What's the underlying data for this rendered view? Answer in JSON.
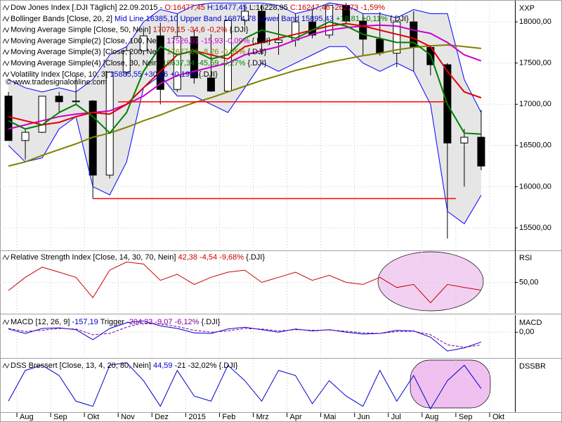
{
  "chart_data": [
    {
      "type": "candlestick",
      "axis_label": "XXP",
      "watermark": "© www.tradesignalonline.com",
      "legend": [
        [
          {
            "text": "Dow Jones Index [.DJI Täglich] 22.09.2015 - ",
            "color": "#000000"
          },
          {
            "text": "O:16477,45 ",
            "color": "#cc0000"
          },
          {
            "text": "H:16477,45 ",
            "color": "#0000cc"
          },
          {
            "text": "L:16228,95 ",
            "color": "#000000"
          },
          {
            "text": "C:16247,46 -262,73 -1,59%",
            "color": "#cc0000"
          }
        ],
        [
          {
            "text": "Bollinger Bands [Close, 20, 2] ",
            "color": "#000000"
          },
          {
            "text": "Mid Line 16385,10 Upper Band 16874,78 Lower Band 15895,43",
            "color": "#0000cc"
          },
          {
            "text": " +18,81 +0,11%",
            "color": "#008000"
          },
          {
            "text": " {.DJI}",
            "color": "#000000"
          }
        ],
        [
          {
            "text": "Moving Average Simple [Close, 50, Nein] ",
            "color": "#000000"
          },
          {
            "text": "17079,15 -34,6 -0,2%",
            "color": "#cc0000"
          },
          {
            "text": " {.DJI}",
            "color": "#000000"
          }
        ],
        [
          {
            "text": "Moving Average Simple(2) [Close, 100, Nein] ",
            "color": "#000000"
          },
          {
            "text": "17526,01 -15,93 -0,09%",
            "color": "#cc00cc"
          },
          {
            "text": " {.DJI}",
            "color": "#000000"
          }
        ],
        [
          {
            "text": "Moving Average Simple(3) [Close, 200, Nein] ",
            "color": "#000000"
          },
          {
            "text": "17677,06 -8,26 -0,05%",
            "color": "#808000"
          },
          {
            "text": " {.DJI}",
            "color": "#000000"
          }
        ],
        [
          {
            "text": "Moving Average Simple(4) [Close, 30, Nein] ",
            "color": "#000000"
          },
          {
            "text": "16637,34 -45,59 -0,27%",
            "color": "#008000"
          },
          {
            "text": " {.DJI}",
            "color": "#000000"
          }
        ],
        [
          {
            "text": "Volatility Index [Close, 10, 3] ",
            "color": "#000000"
          },
          {
            "text": "15885,55 +30,26 +0,19%",
            "color": "#0000cc"
          },
          {
            "text": " {.DJI}",
            "color": "#000000"
          }
        ]
      ],
      "x": [
        0.5,
        1.5,
        2.5,
        3.5,
        4.5,
        5.5,
        6.5,
        7.5,
        8.5,
        9.5,
        10.5,
        11.5,
        12.5,
        13.5,
        14.5,
        15.5,
        16.5,
        17.5,
        18.5,
        19.5,
        20.5,
        21.5,
        22.5,
        23.5,
        24.5,
        25.5,
        26.5,
        27.5,
        28.5
      ],
      "open": [
        17100,
        16560,
        16660,
        17098,
        17030,
        17040,
        16140,
        17390,
        17650,
        17830,
        17180,
        17820,
        17320,
        17160,
        18020,
        18130,
        17750,
        17780,
        18000,
        17840,
        18200,
        18010,
        17790,
        17620,
        18000,
        17690,
        17480,
        16530,
        16600
      ],
      "high": [
        17150,
        16700,
        17100,
        17150,
        17350,
        17050,
        17400,
        17700,
        17900,
        17990,
        18100,
        17900,
        17850,
        18020,
        18200,
        18200,
        18100,
        18100,
        18150,
        18200,
        18230,
        18100,
        18120,
        18000,
        18130,
        17700,
        17500,
        16700,
        16930
      ],
      "low": [
        16560,
        16330,
        16650,
        16900,
        17000,
        15855,
        16100,
        17350,
        17600,
        17000,
        17150,
        17250,
        17150,
        17150,
        17950,
        17600,
        17600,
        17700,
        17800,
        17800,
        17980,
        17600,
        17590,
        17450,
        17400,
        17350,
        15370,
        16000,
        16200
      ],
      "close": [
        16560,
        16660,
        17098,
        17030,
        17040,
        16140,
        17390,
        17650,
        17830,
        17180,
        17820,
        17320,
        17160,
        18020,
        18130,
        17750,
        17780,
        18000,
        17840,
        18200,
        18010,
        17790,
        17620,
        18000,
        17690,
        17480,
        16530,
        16600,
        16250
      ],
      "up_color": "#ffffff",
      "down_color": "#000000",
      "bands": {
        "color": "#0000ff",
        "fill": "#e6e6e6",
        "upper": [
          17300,
          17200,
          17150,
          17200,
          17150,
          17300,
          17600,
          17700,
          18000,
          18150,
          18100,
          18200,
          18230,
          18230,
          18230,
          18230,
          18200,
          18100,
          18150,
          18230,
          18200,
          18100,
          18100,
          18050,
          18150,
          18100,
          18100,
          17300,
          16900
        ],
        "lower": [
          16500,
          16300,
          16350,
          16700,
          16850,
          16000,
          15900,
          16300,
          17200,
          17350,
          17100,
          17100,
          17000,
          16900,
          17200,
          17500,
          17400,
          17500,
          17600,
          17700,
          17700,
          17500,
          17400,
          17500,
          17400,
          17000,
          15700,
          15550,
          15895.43
        ]
      },
      "series": [
        {
          "color": "#808000",
          "values": [
            16250,
            16300,
            16380,
            16450,
            16520,
            16600,
            16650,
            16720,
            16800,
            16870,
            16950,
            17020,
            17080,
            17150,
            17220,
            17290,
            17350,
            17410,
            17460,
            17510,
            17550,
            17590,
            17620,
            17660,
            17690,
            17710,
            17720,
            17700,
            17677.06
          ]
        },
        {
          "color": "#cc00cc",
          "values": [
            16700,
            16750,
            16800,
            16850,
            16880,
            16900,
            16920,
            17000,
            17100,
            17250,
            17350,
            17400,
            17450,
            17500,
            17600,
            17650,
            17700,
            17780,
            17850,
            17900,
            17930,
            17950,
            17960,
            17950,
            17900,
            17860,
            17750,
            17600,
            17526.01
          ]
        },
        {
          "color": "#e00000",
          "values": [
            16850,
            16800,
            16750,
            16780,
            16850,
            16900,
            16880,
            17000,
            17200,
            17400,
            17600,
            17650,
            17600,
            17550,
            17700,
            17750,
            17800,
            17850,
            17900,
            17950,
            17980,
            17950,
            17900,
            17850,
            17800,
            17700,
            17400,
            17150,
            17079.15
          ]
        },
        {
          "color": "#008000",
          "values": [
            16800,
            16700,
            16750,
            16900,
            17000,
            16850,
            16650,
            16900,
            17400,
            17700,
            17600,
            17650,
            17550,
            17600,
            17800,
            17900,
            17850,
            17800,
            17900,
            18000,
            17950,
            17850,
            17800,
            17750,
            17750,
            17600,
            17000,
            16650,
            16637.34
          ]
        }
      ],
      "hlines": [
        {
          "value": 17030,
          "x": [
            7,
            26.4
          ],
          "color": "#ff0000"
        },
        {
          "value": 15855,
          "x": [
            5.5,
            27
          ],
          "color": "#ff0000"
        }
      ],
      "xlim": [
        0,
        30.5
      ],
      "xticks": [
        1,
        3,
        5,
        7,
        9,
        11,
        13,
        15,
        17,
        19,
        21,
        23,
        25,
        27,
        29
      ],
      "ylim": [
        15235,
        18240
      ],
      "yticks": [
        {
          "value": 15500,
          "label": "15500,00"
        },
        {
          "value": 16000,
          "label": "16000,00"
        },
        {
          "value": 16500,
          "label": "16500,00"
        },
        {
          "value": 17000,
          "label": "17000,00"
        },
        {
          "value": 17500,
          "label": "17500,00"
        },
        {
          "value": 18000,
          "label": "18000,00"
        }
      ]
    },
    {
      "type": "line",
      "axis_label": "RSI",
      "legend": [
        [
          {
            "text": "Relative Strength Index [Close, 14, 30, 70, Nein] ",
            "color": "#000000"
          },
          {
            "text": "42,38 -4,54 -9,68%",
            "color": "#cc0000"
          },
          {
            "text": " {.DJI}",
            "color": "#000000"
          }
        ]
      ],
      "x": [
        0.5,
        1.5,
        2.5,
        3.5,
        4.5,
        5.5,
        6.5,
        7.5,
        8.5,
        9.5,
        10.5,
        11.5,
        12.5,
        13.5,
        14.5,
        15.5,
        16.5,
        17.5,
        18.5,
        19.5,
        20.5,
        21.5,
        22.5,
        23.5,
        24.5,
        25.5,
        26.5,
        27.5,
        28.5
      ],
      "series": [
        {
          "color": "#cc0000",
          "values": [
            42,
            55,
            65,
            60,
            55,
            35,
            62,
            70,
            68,
            52,
            58,
            48,
            55,
            60,
            62,
            50,
            55,
            60,
            52,
            57,
            50,
            48,
            55,
            45,
            48,
            30,
            48,
            45,
            42.38
          ]
        }
      ],
      "xlim": [
        0,
        30.5
      ],
      "xticks": [
        1,
        3,
        5,
        7,
        9,
        11,
        13,
        15,
        17,
        19,
        21,
        23,
        25,
        27,
        29
      ],
      "ylim": [
        20,
        80
      ],
      "yticks": [
        {
          "value": 50,
          "label": "50,00"
        }
      ]
    },
    {
      "type": "line",
      "axis_label": "MACD",
      "legend": [
        [
          {
            "text": "MACD [12, 26, 9] ",
            "color": "#000000"
          },
          {
            "text": "-157,19",
            "color": "#0000cc"
          },
          {
            "text": " Trigger ",
            "color": "#000000"
          },
          {
            "text": "-204,33 -9,07 -6,12%",
            "color": "#8000a0"
          },
          {
            "text": " {.DJI}",
            "color": "#000000"
          }
        ]
      ],
      "x": [
        0.5,
        1.5,
        2.5,
        3.5,
        4.5,
        5.5,
        6.5,
        7.5,
        8.5,
        9.5,
        10.5,
        11.5,
        12.5,
        13.5,
        14.5,
        15.5,
        16.5,
        17.5,
        18.5,
        19.5,
        20.5,
        21.5,
        22.5,
        23.5,
        24.5,
        25.5,
        26.5,
        27.5,
        28.5
      ],
      "series": [
        {
          "color": "#0000cc",
          "values": [
            50,
            -20,
            60,
            70,
            40,
            -120,
            60,
            150,
            180,
            100,
            60,
            -10,
            -20,
            50,
            80,
            40,
            0,
            50,
            20,
            40,
            0,
            -30,
            -20,
            30,
            20,
            -80,
            -300,
            -250,
            -157.19
          ]
        },
        {
          "color": "#8000a0",
          "dashed": true,
          "values": [
            60,
            10,
            30,
            60,
            50,
            -40,
            -20,
            80,
            150,
            130,
            90,
            30,
            0,
            20,
            60,
            50,
            20,
            40,
            30,
            35,
            15,
            -10,
            -20,
            10,
            15,
            -40,
            -200,
            -240,
            -204.33
          ]
        }
      ],
      "xlim": [
        0,
        30.5
      ],
      "xticks": [
        1,
        3,
        5,
        7,
        9,
        11,
        13,
        15,
        17,
        19,
        21,
        23,
        25,
        27,
        29
      ],
      "ylim": [
        -400,
        250
      ],
      "yticks": [
        {
          "value": 0,
          "label": "0,00"
        }
      ]
    },
    {
      "type": "line",
      "axis_label": "DSSBR",
      "legend": [
        [
          {
            "text": "DSS Bressert [Close, 13, 4, 20, 80, Nein] ",
            "color": "#000000"
          },
          {
            "text": "44,59",
            "color": "#0000cc"
          },
          {
            "text": " -21 -32,02% {.DJI}",
            "color": "#000000"
          }
        ]
      ],
      "x": [
        0.5,
        1.5,
        2.5,
        3.5,
        4.5,
        5.5,
        6.5,
        7.5,
        8.5,
        9.5,
        10.5,
        11.5,
        12.5,
        13.5,
        14.5,
        15.5,
        16.5,
        17.5,
        18.5,
        19.5,
        20.5,
        21.5,
        22.5,
        23.5,
        24.5,
        25.5,
        26.5,
        27.5,
        28.5
      ],
      "series": [
        {
          "color": "#0000cc",
          "values": [
            20,
            80,
            90,
            70,
            20,
            10,
            90,
            95,
            60,
            10,
            80,
            30,
            20,
            90,
            60,
            20,
            80,
            70,
            15,
            60,
            30,
            10,
            80,
            20,
            70,
            5,
            60,
            90,
            44.59
          ]
        }
      ],
      "xlim": [
        0,
        30.5
      ],
      "xticks": [
        {
          "value": 1,
          "label": "Aug"
        },
        {
          "value": 3,
          "label": "Sep"
        },
        {
          "value": 5,
          "label": "Okt"
        },
        {
          "value": 7,
          "label": "Nov"
        },
        {
          "value": 9,
          "label": "Dez"
        },
        {
          "value": 11,
          "label": "2015"
        },
        {
          "value": 13,
          "label": "Feb"
        },
        {
          "value": 15,
          "label": "Mrz"
        },
        {
          "value": 17,
          "label": "Apr"
        },
        {
          "value": 19,
          "label": "Mai"
        },
        {
          "value": 21,
          "label": "Jun"
        },
        {
          "value": 23,
          "label": "Jul"
        },
        {
          "value": 25,
          "label": "Aug"
        },
        {
          "value": 27,
          "label": "Sep"
        },
        {
          "value": 29,
          "label": "Okt"
        }
      ],
      "ylim": [
        0,
        100
      ]
    }
  ]
}
